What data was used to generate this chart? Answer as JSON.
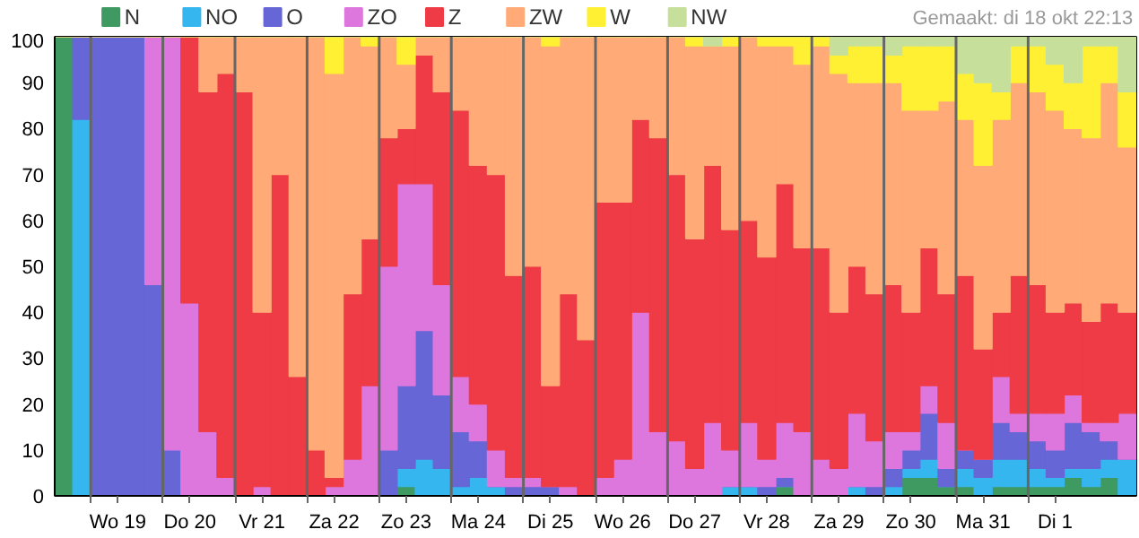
{
  "chart_data": {
    "type": "bar",
    "stacked": true,
    "categories": [
      null,
      null,
      null,
      "Wo 19",
      null,
      null,
      null,
      "Do 20",
      null,
      null,
      null,
      "Vr 21",
      null,
      null,
      null,
      "Za 22",
      null,
      null,
      null,
      "Zo 23",
      null,
      null,
      null,
      "Ma 24",
      null,
      null,
      null,
      "Di 25",
      null,
      null,
      null,
      "Wo 26",
      null,
      null,
      null,
      "Do 27",
      null,
      null,
      null,
      "Vr 28",
      null,
      null,
      null,
      "Za 29",
      null,
      null,
      null,
      "Zo 30",
      null,
      null,
      null,
      "Ma 31",
      null,
      null,
      null,
      "Di 1",
      null,
      null,
      null,
      null
    ],
    "ylim": [
      0,
      100
    ],
    "yticks": [
      0,
      10,
      20,
      30,
      40,
      50,
      60,
      70,
      80,
      90,
      100
    ],
    "legend": "top left",
    "annotations": [
      "Gemaakt: di 18 okt 22:13"
    ],
    "series": [
      {
        "name": "N",
        "color": "#3f9a62",
        "values": [
          100,
          0,
          0,
          0,
          0,
          0,
          0,
          0,
          0,
          0,
          0,
          0,
          0,
          0,
          0,
          0,
          0,
          0,
          0,
          2,
          0,
          0,
          0,
          0,
          0,
          0,
          0,
          0,
          0,
          0,
          0,
          0,
          0,
          0,
          0,
          0,
          0,
          0,
          0,
          0,
          2,
          0,
          0,
          0,
          0,
          0,
          0,
          4,
          4,
          2,
          2,
          0,
          2,
          2,
          2,
          2,
          4,
          2,
          4,
          0
        ]
      },
      {
        "name": "NO",
        "color": "#35b6ee",
        "values": [
          0,
          82,
          0,
          0,
          0,
          0,
          0,
          0,
          0,
          0,
          0,
          0,
          0,
          0,
          0,
          0,
          0,
          0,
          0,
          4,
          8,
          6,
          2,
          4,
          2,
          0,
          0,
          0,
          0,
          0,
          0,
          0,
          0,
          0,
          0,
          0,
          0,
          2,
          2,
          0,
          0,
          0,
          0,
          0,
          2,
          0,
          2,
          2,
          4,
          0,
          4,
          4,
          6,
          6,
          4,
          2,
          2,
          4,
          4,
          8
        ]
      },
      {
        "name": "O",
        "color": "#6666d6",
        "values": [
          0,
          18,
          100,
          100,
          100,
          46,
          10,
          0,
          0,
          0,
          0,
          0,
          0,
          0,
          0,
          0,
          0,
          0,
          10,
          18,
          28,
          16,
          12,
          8,
          0,
          2,
          2,
          2,
          0,
          0,
          0,
          0,
          0,
          0,
          0,
          0,
          0,
          0,
          0,
          2,
          2,
          0,
          0,
          0,
          0,
          2,
          4,
          4,
          10,
          4,
          4,
          4,
          8,
          6,
          6,
          6,
          10,
          8,
          4,
          0
        ]
      },
      {
        "name": "ZO",
        "color": "#dd77dd",
        "values": [
          0,
          0,
          0,
          0,
          0,
          54,
          90,
          42,
          14,
          4,
          0,
          2,
          0,
          0,
          0,
          2,
          8,
          24,
          40,
          44,
          32,
          24,
          12,
          8,
          8,
          2,
          2,
          0,
          2,
          0,
          4,
          8,
          40,
          14,
          12,
          6,
          16,
          8,
          14,
          6,
          12,
          14,
          8,
          6,
          16,
          10,
          8,
          4,
          6,
          10,
          0,
          0,
          10,
          4,
          6,
          8,
          6,
          2,
          4,
          10
        ]
      },
      {
        "name": "Z",
        "color": "#ee3b45",
        "values": [
          0,
          0,
          0,
          0,
          0,
          0,
          0,
          58,
          74,
          88,
          88,
          38,
          70,
          26,
          10,
          2,
          36,
          32,
          28,
          12,
          28,
          42,
          58,
          52,
          60,
          44,
          46,
          22,
          42,
          34,
          60,
          56,
          42,
          64,
          58,
          50,
          56,
          48,
          44,
          44,
          52,
          40,
          46,
          34,
          32,
          32,
          32,
          26,
          30,
          28,
          38,
          24,
          14,
          30,
          28,
          22,
          20,
          22,
          26,
          22
        ]
      },
      {
        "name": "ZW",
        "color": "#ffaa77",
        "values": [
          0,
          0,
          0,
          0,
          0,
          0,
          0,
          0,
          12,
          8,
          12,
          60,
          30,
          74,
          90,
          88,
          56,
          42,
          22,
          14,
          4,
          12,
          16,
          28,
          30,
          52,
          50,
          74,
          56,
          66,
          36,
          36,
          18,
          22,
          30,
          42,
          26,
          40,
          40,
          46,
          30,
          40,
          44,
          52,
          40,
          46,
          44,
          44,
          30,
          42,
          34,
          40,
          42,
          42,
          42,
          44,
          38,
          40,
          48,
          36
        ]
      },
      {
        "name": "W",
        "color": "#fff033",
        "values": [
          0,
          0,
          0,
          0,
          0,
          0,
          0,
          0,
          0,
          0,
          0,
          0,
          0,
          0,
          0,
          8,
          0,
          2,
          0,
          6,
          0,
          0,
          0,
          0,
          0,
          0,
          0,
          2,
          0,
          0,
          0,
          0,
          0,
          0,
          0,
          2,
          0,
          2,
          0,
          2,
          2,
          6,
          2,
          4,
          8,
          8,
          6,
          14,
          14,
          12,
          10,
          18,
          6,
          8,
          10,
          10,
          10,
          20,
          8,
          12
        ]
      },
      {
        "name": "NW",
        "color": "#c6e09b",
        "values": [
          0,
          0,
          0,
          0,
          0,
          0,
          0,
          0,
          0,
          0,
          0,
          0,
          0,
          0,
          0,
          0,
          0,
          0,
          0,
          0,
          0,
          0,
          0,
          0,
          0,
          0,
          0,
          0,
          0,
          0,
          0,
          0,
          0,
          0,
          0,
          0,
          2,
          0,
          0,
          0,
          0,
          0,
          0,
          4,
          2,
          2,
          4,
          2,
          2,
          2,
          8,
          10,
          12,
          2,
          2,
          6,
          10,
          2,
          2,
          12
        ]
      }
    ]
  }
}
